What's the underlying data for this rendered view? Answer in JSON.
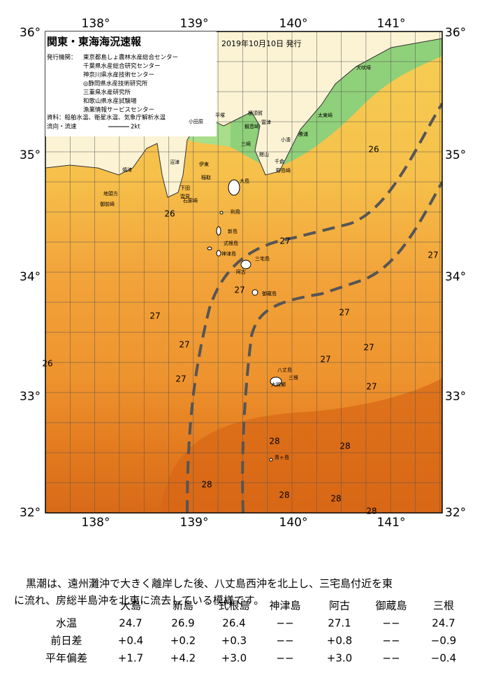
{
  "header": {
    "title": "関東・東海海況速報",
    "date": "2019年10月10日 発行"
  },
  "agencies": {
    "label": "発行機関：",
    "items": [
      "東京都島しょ農林水産総合センター",
      "千葉県水産総合研究センター",
      "神奈川県水産技術センター",
      "◎静岡県水産技術研究所",
      "三重県水産研究所",
      "和歌山県水産試験場",
      "漁業情報サービスセンター"
    ]
  },
  "sources": "資料：船舶水温、衛星水温、気象庁解析水温",
  "legend": {
    "label": "流向・流速",
    "speed": "2kt"
  },
  "axes": {
    "lon_labels": [
      "138°",
      "139°",
      "140°",
      "141°"
    ],
    "lat_labels": [
      "36°",
      "35°",
      "34°",
      "33°",
      "32°"
    ]
  },
  "places": [
    "犬吠埼",
    "太東崎",
    "勝浦",
    "小湊",
    "千倉",
    "野島崎",
    "館山",
    "富津",
    "横須賀",
    "観音崎",
    "三崎",
    "平塚",
    "小田原",
    "伊東",
    "沼津",
    "焼津",
    "御前崎",
    "地頭方",
    "稲取",
    "下田",
    "雲見",
    "石廊崎",
    "大島",
    "利島",
    "新島",
    "式根島",
    "神津島",
    "三宅島",
    "阿古",
    "御蔵島",
    "八丈島",
    "三根",
    "大賀郷",
    "青ヶ島"
  ],
  "contour_labels": [
    "26",
    "26",
    "27",
    "27",
    "27",
    "27",
    "27",
    "27",
    "27",
    "27",
    "27",
    "27",
    "26",
    "28",
    "28",
    "28",
    "28",
    "28",
    "28"
  ],
  "summary": "黒潮は、遠州灘沖で大きく離岸した後、八丈島西沖を北上し、三宅島付近を東に流れ、房総半島沖を北東に流去している模様です。",
  "table": {
    "columns": [
      "大島",
      "新島",
      "式根島",
      "神津島",
      "阿古",
      "御蔵島",
      "三根"
    ],
    "rows": [
      {
        "label": "水温",
        "values": [
          "24.7",
          "26.9",
          "26.4",
          "−−",
          "27.1",
          "−−",
          "24.7"
        ]
      },
      {
        "label": "前日差",
        "values": [
          "+0.4",
          "+0.2",
          "+0.3",
          "−−",
          "+0.8",
          "−−",
          "−0.9"
        ]
      },
      {
        "label": "平年偏差",
        "values": [
          "+1.7",
          "+4.2",
          "+3.0",
          "−−",
          "+3.0",
          "−−",
          "−0.4"
        ]
      }
    ]
  }
}
